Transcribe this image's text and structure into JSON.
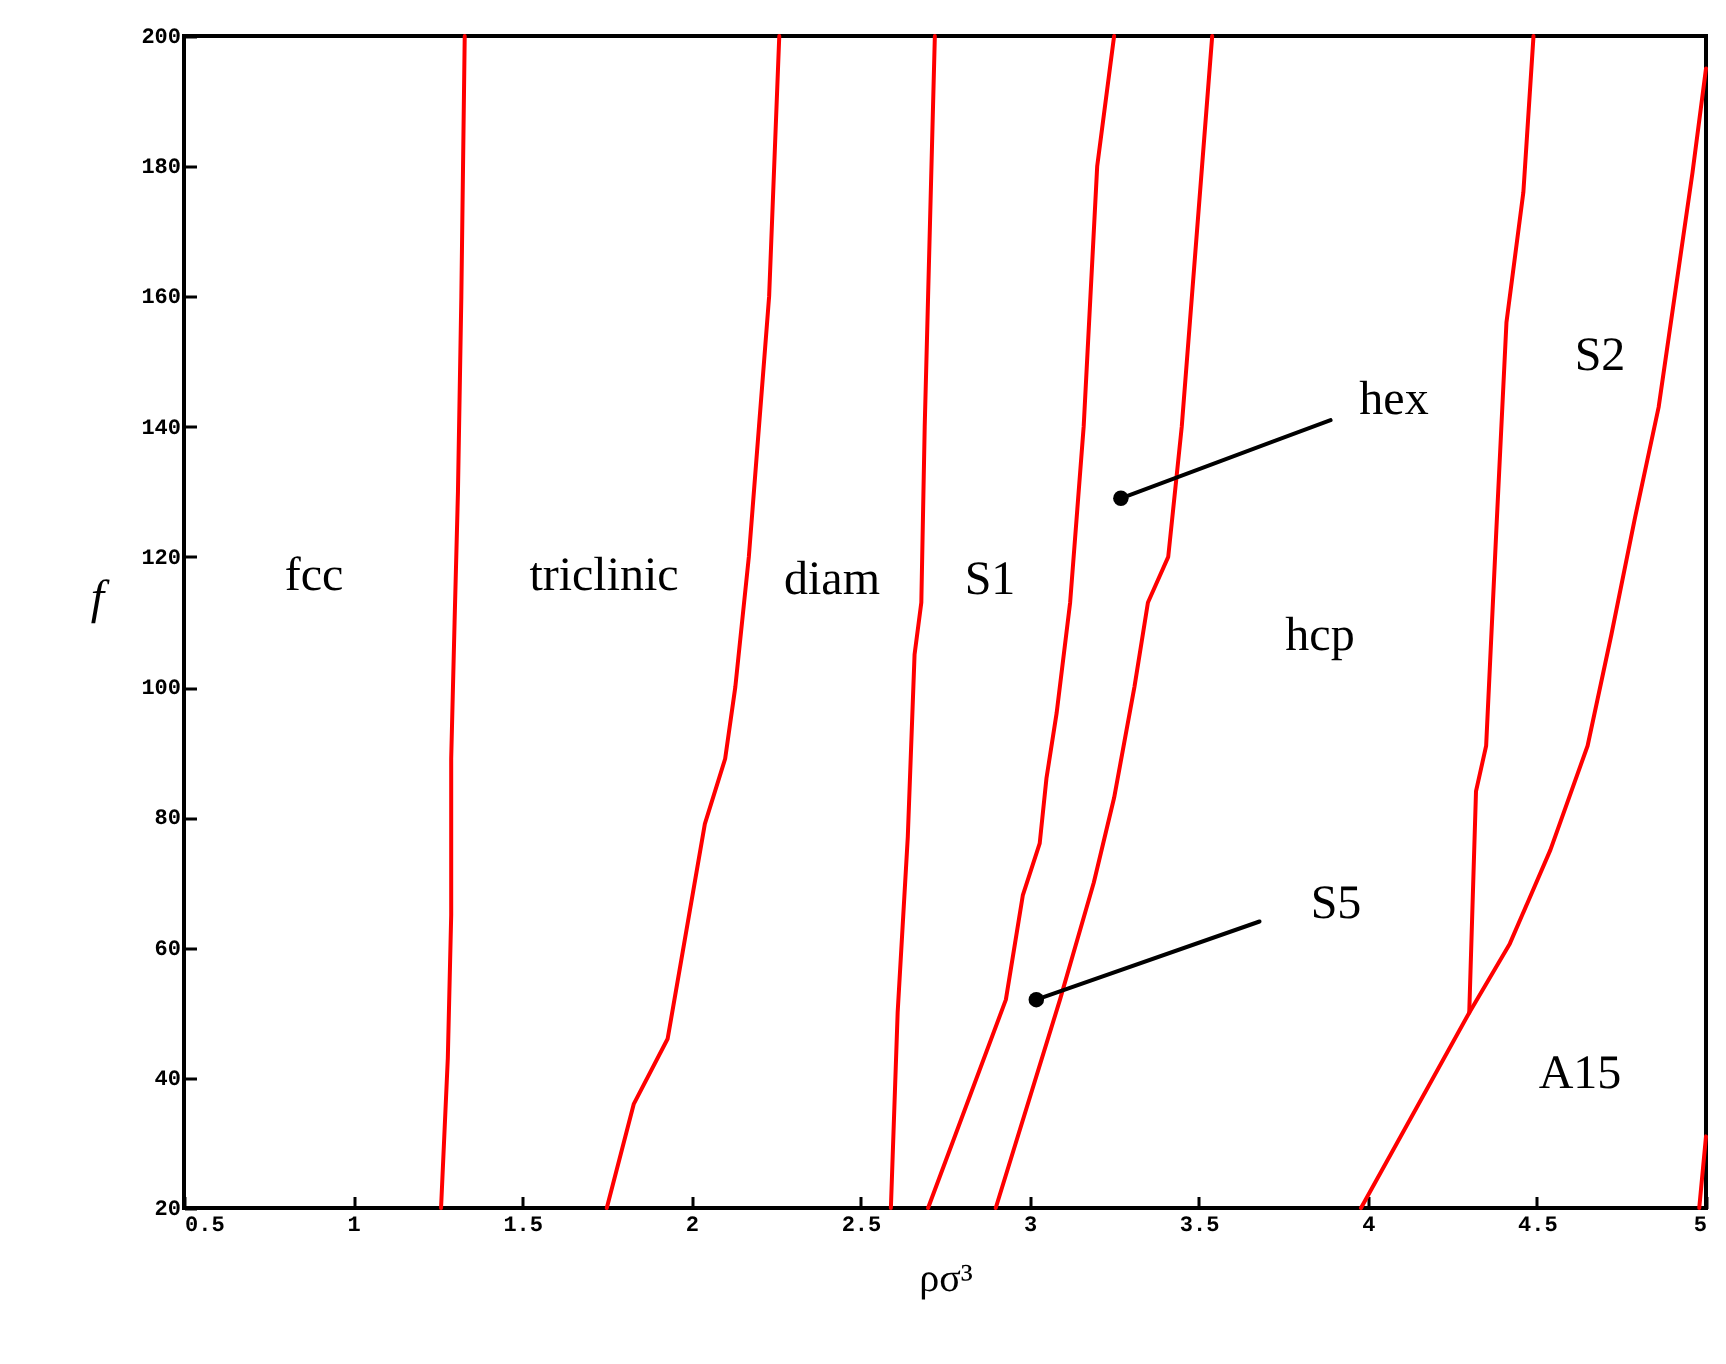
{
  "chart_data": {
    "type": "line",
    "xlabel": "ρσ³",
    "ylabel": "f",
    "xlim": [
      0.5,
      5
    ],
    "xticks": [
      0.5,
      1,
      1.5,
      2,
      2.5,
      3,
      3.5,
      4,
      4.5,
      5
    ],
    "ylim": [
      20,
      200
    ],
    "yticks": [
      20,
      40,
      60,
      80,
      100,
      120,
      140,
      160,
      180,
      200
    ],
    "line_style": "solid",
    "series": [
      {
        "color": "#ff0000",
        "x": [
          1.26,
          1.28,
          1.29,
          1.29,
          1.3,
          1.31,
          1.32,
          1.33
        ],
        "values": [
          20,
          43,
          65,
          89,
          110,
          130,
          160,
          200
        ]
      },
      {
        "color": "#ff0000",
        "x": [
          1.75,
          1.83,
          1.93,
          1.97,
          2.04,
          2.1,
          2.13,
          2.17,
          2.2,
          2.23,
          2.26
        ],
        "values": [
          20,
          36,
          46,
          58,
          79,
          89,
          100,
          120,
          140,
          160,
          200
        ]
      },
      {
        "color": "#ff0000",
        "x": [
          2.59,
          2.61,
          2.64,
          2.66,
          2.68,
          2.69,
          2.7,
          2.72
        ],
        "values": [
          20,
          50,
          77,
          105,
          113,
          140,
          160,
          200
        ]
      },
      {
        "color": "#ff0000",
        "x": [
          2.7,
          2.93,
          2.98,
          3.03,
          3.05,
          3.08,
          3.12,
          3.16,
          3.18,
          3.2,
          3.25
        ],
        "values": [
          20,
          52,
          68,
          76,
          86,
          96,
          113,
          140,
          160,
          180,
          200
        ]
      },
      {
        "color": "#ff0000",
        "x": [
          2.9,
          3.09,
          3.19,
          3.25,
          3.31,
          3.35,
          3.41,
          3.45,
          3.48,
          3.51,
          3.54
        ],
        "values": [
          20,
          52,
          70,
          83,
          100,
          113,
          120,
          140,
          160,
          180,
          200
        ]
      },
      {
        "color": "#ff0000",
        "x": [
          3.98,
          4.3,
          4.32,
          4.35,
          4.38,
          4.41,
          4.46,
          4.49
        ],
        "values": [
          20,
          50,
          84,
          91,
          124,
          156,
          176,
          200
        ]
      },
      {
        "color": "#ff0000",
        "x": [
          4.3,
          4.42,
          4.54,
          4.65,
          4.72,
          4.79,
          4.86,
          4.91,
          4.96,
          5.0
        ],
        "values": [
          50,
          60.6,
          75,
          91,
          108,
          126,
          143,
          161,
          179,
          195
        ]
      },
      {
        "color": "#ff0000",
        "x": [
          4.98,
          5.0
        ],
        "values": [
          20,
          31
        ]
      },
      {
        "color": "#000000",
        "x": [
          3.27,
          3.89
        ],
        "values": [
          129,
          141
        ]
      },
      {
        "color": "#000000",
        "x": [
          3.02,
          3.68
        ],
        "values": [
          52,
          64
        ]
      },
      {
        "type": "scatter",
        "marker": "circle",
        "color": "#000000",
        "x": [
          3.27,
          3.02
        ],
        "values": [
          129,
          52
        ]
      }
    ],
    "annotations": [
      "fcc",
      "triclinic",
      "diam",
      "S1",
      "hex",
      "hcp",
      "S2",
      "S5",
      "A15"
    ]
  }
}
